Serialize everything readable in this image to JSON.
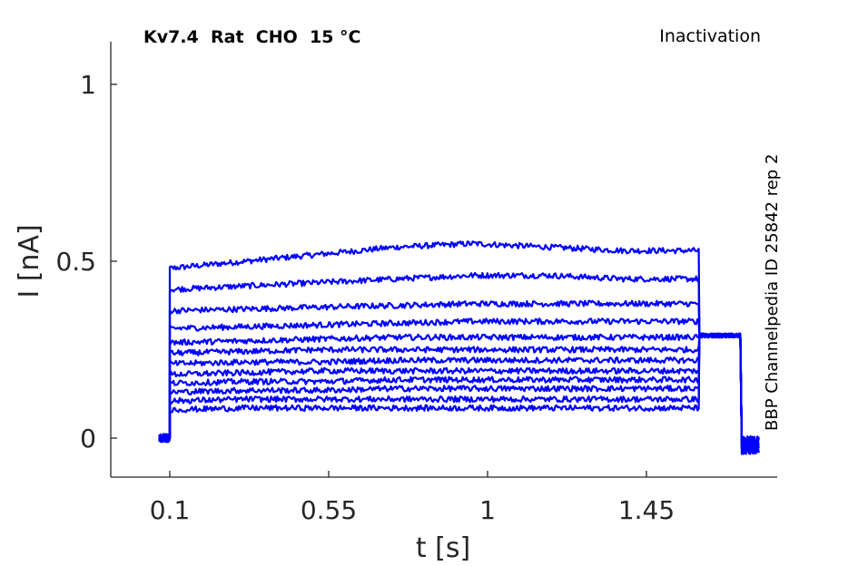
{
  "chart_data": {
    "type": "line",
    "title": "Kv7.4  Rat  CHO  15 °C",
    "protocol": "Inactivation",
    "side_label": "BBP Channelpedia ID 25842 rep 2",
    "xlabel": "t [s]",
    "ylabel": "I [nA]",
    "xlim": [
      0.0,
      1.87
    ],
    "ylim": [
      -0.11,
      1.12
    ],
    "xticks": [
      0.1,
      0.55,
      1.0,
      1.45
    ],
    "xtick_labels": [
      "0.1",
      "0.55",
      "1",
      "1.45"
    ],
    "yticks": [
      0,
      0.5,
      1
    ],
    "ytick_labels": [
      "0",
      "0.5",
      "1"
    ],
    "grid": false,
    "line_color": "#0000ff",
    "pulse": {
      "step_on": 0.1,
      "step_off": 1.6,
      "tail_end": 1.72,
      "baseline_start": 0.07,
      "end": 1.77
    },
    "series": [
      {
        "values": [
          0.48,
          0.5,
          0.52,
          0.54,
          0.55,
          0.54,
          0.53,
          0.53
        ],
        "tail": 0.29
      },
      {
        "values": [
          0.42,
          0.43,
          0.44,
          0.45,
          0.46,
          0.46,
          0.45,
          0.45
        ],
        "tail": 0.29
      },
      {
        "values": [
          0.36,
          0.365,
          0.37,
          0.375,
          0.38,
          0.38,
          0.38,
          0.38
        ],
        "tail": 0.29
      },
      {
        "values": [
          0.31,
          0.315,
          0.32,
          0.325,
          0.33,
          0.33,
          0.33,
          0.33
        ],
        "tail": 0.29
      },
      {
        "values": [
          0.27,
          0.275,
          0.28,
          0.285,
          0.285,
          0.285,
          0.285,
          0.285
        ],
        "tail": 0.29
      },
      {
        "values": [
          0.24,
          0.245,
          0.25,
          0.25,
          0.25,
          0.25,
          0.25,
          0.25
        ],
        "tail": 0.29
      },
      {
        "values": [
          0.21,
          0.215,
          0.215,
          0.22,
          0.22,
          0.22,
          0.22,
          0.22
        ],
        "tail": 0.29
      },
      {
        "values": [
          0.18,
          0.185,
          0.19,
          0.19,
          0.19,
          0.19,
          0.19,
          0.19
        ],
        "tail": 0.29
      },
      {
        "values": [
          0.155,
          0.16,
          0.16,
          0.165,
          0.165,
          0.165,
          0.165,
          0.165
        ],
        "tail": 0.29
      },
      {
        "values": [
          0.13,
          0.135,
          0.135,
          0.14,
          0.14,
          0.14,
          0.14,
          0.14
        ],
        "tail": 0.29
      },
      {
        "values": [
          0.105,
          0.11,
          0.11,
          0.11,
          0.11,
          0.11,
          0.11,
          0.11
        ],
        "tail": 0.29
      },
      {
        "values": [
          0.08,
          0.085,
          0.085,
          0.085,
          0.085,
          0.085,
          0.085,
          0.085
        ],
        "tail": 0.29
      }
    ]
  }
}
